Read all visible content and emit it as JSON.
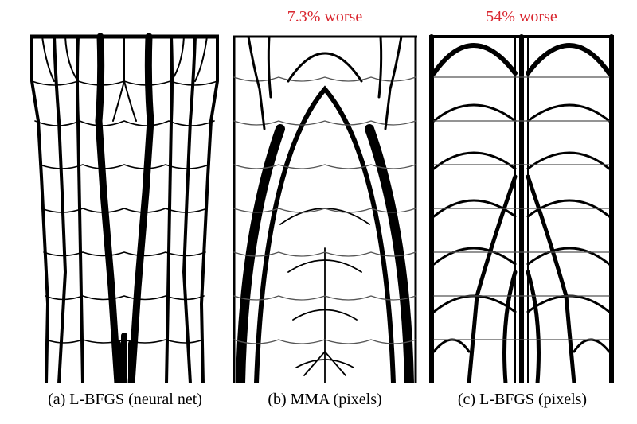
{
  "figure": {
    "panels": [
      {
        "id": "a",
        "annotation": "",
        "caption": "(a) L-BFGS (neural net)"
      },
      {
        "id": "b",
        "annotation": "7.3% worse",
        "caption": "(b) MMA (pixels)"
      },
      {
        "id": "c",
        "annotation": "54% worse",
        "caption": "(c) L-BFGS (pixels)"
      }
    ],
    "colors": {
      "annotation": "#d9262f",
      "structure": "#000000",
      "background": "#ffffff"
    }
  }
}
